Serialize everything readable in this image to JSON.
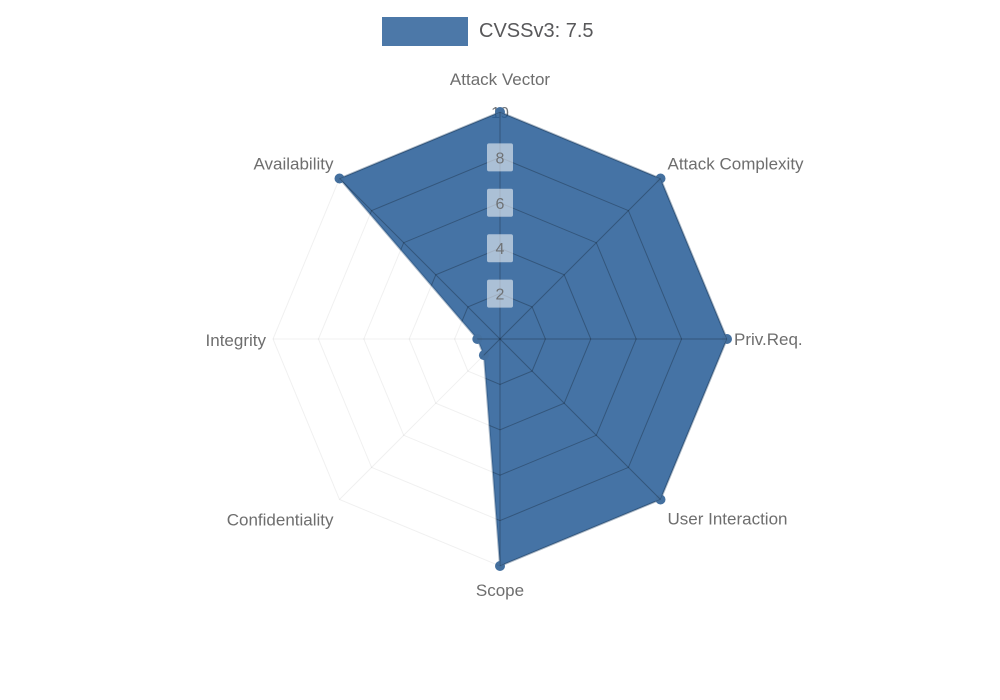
{
  "legend": {
    "position": "top",
    "items": [
      {
        "label": "CVSSv3: 7.5",
        "swatch_color": "#4c78a8"
      }
    ]
  },
  "chart_data": {
    "type": "radar",
    "title": "CVSSv3: 7.5",
    "categories": [
      "Attack Vector",
      "Attack Complexity",
      "Priv.Req.",
      "User Interaction",
      "Scope",
      "Confidentiality",
      "Integrity",
      "Availability"
    ],
    "series": [
      {
        "name": "CVSSv3: 7.5",
        "values": [
          10,
          10,
          10,
          10,
          10,
          1,
          1,
          10
        ]
      }
    ],
    "radial_axis": {
      "min": 0,
      "max": 10,
      "ticks": [
        2,
        4,
        6,
        8,
        10
      ]
    },
    "grid": true,
    "grid_shape": "octagon",
    "legend_position": "top",
    "colors": {
      "series_fill": "rgba(37,90,149,0.85)",
      "series_border": "rgba(23,62,105,0.35)",
      "point": "#44709f",
      "grid_inside": "rgba(0,0,0,0.20)",
      "grid_outside": "rgba(0,0,0,0.06)",
      "axis_label": "#6e6e6e",
      "tick_label": "#6f7275",
      "tick_backdrop": "rgba(255,255,255,0.55)",
      "tick_backdrop_top": "rgba(255,255,255,0.92)",
      "legend_text": "#58585a"
    }
  }
}
